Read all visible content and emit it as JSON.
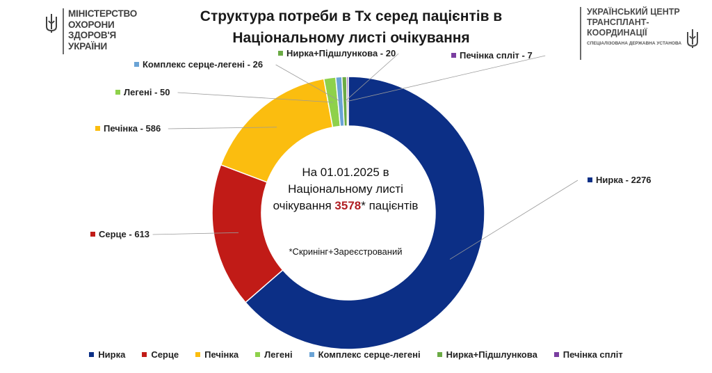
{
  "header": {
    "title_line1": "Структура потреби в Тх серед пацієнтів в",
    "title_line2": "Національному листі очікування",
    "ministry_logo": {
      "icon": "trident-icon",
      "lines": [
        "МІНІСТЕРСТВО",
        "ОХОРОНИ",
        "ЗДОРОВ'Я",
        "УКРАЇНИ"
      ]
    },
    "center_logo": {
      "icon": "trident-icon",
      "lines": [
        "УКРАЇНСЬКИЙ ЦЕНТР",
        "ТРАНСПЛАНТ-",
        "КООРДИНАЦІЇ"
      ],
      "subtitle": "СПЕЦІАЛІЗОВАНА ДЕРЖАВНА УСТАНОВА"
    }
  },
  "center_text": {
    "line1": "На 01.01.2025 в",
    "line2": "Національному листі",
    "line3_prefix": "очікування ",
    "line3_total": "3578",
    "line3_suffix": "* пацієнтів",
    "footnote": "*Скринінг+Зареєстрований"
  },
  "colors": {
    "accent_total": "#b01e23"
  },
  "chart_data": {
    "type": "pie",
    "variant": "donut",
    "total": 3578,
    "series": [
      {
        "name": "Нирка",
        "value": 2276,
        "label": "Нирка - 2276",
        "color": "#0c2f86"
      },
      {
        "name": "Серце",
        "value": 613,
        "label": "Серце - 613",
        "color": "#c11b17"
      },
      {
        "name": "Печінка",
        "value": 586,
        "label": "Печінка - 586",
        "color": "#fbbd0f"
      },
      {
        "name": "Легені",
        "value": 50,
        "label": "Легені - 50",
        "color": "#8ed14b"
      },
      {
        "name": "Комплекс серце-легені",
        "value": 26,
        "label": "Комплекс серце-легені - 26",
        "color": "#6aa3d5"
      },
      {
        "name": "Нирка+Підшлункова",
        "value": 20,
        "label": "Нирка+Підшлункова - 20",
        "color": "#6bab45"
      },
      {
        "name": "Печінка спліт",
        "value": 7,
        "label": "Печінка спліт - 7",
        "color": "#7a3ea0"
      }
    ],
    "legend_position": "bottom"
  }
}
